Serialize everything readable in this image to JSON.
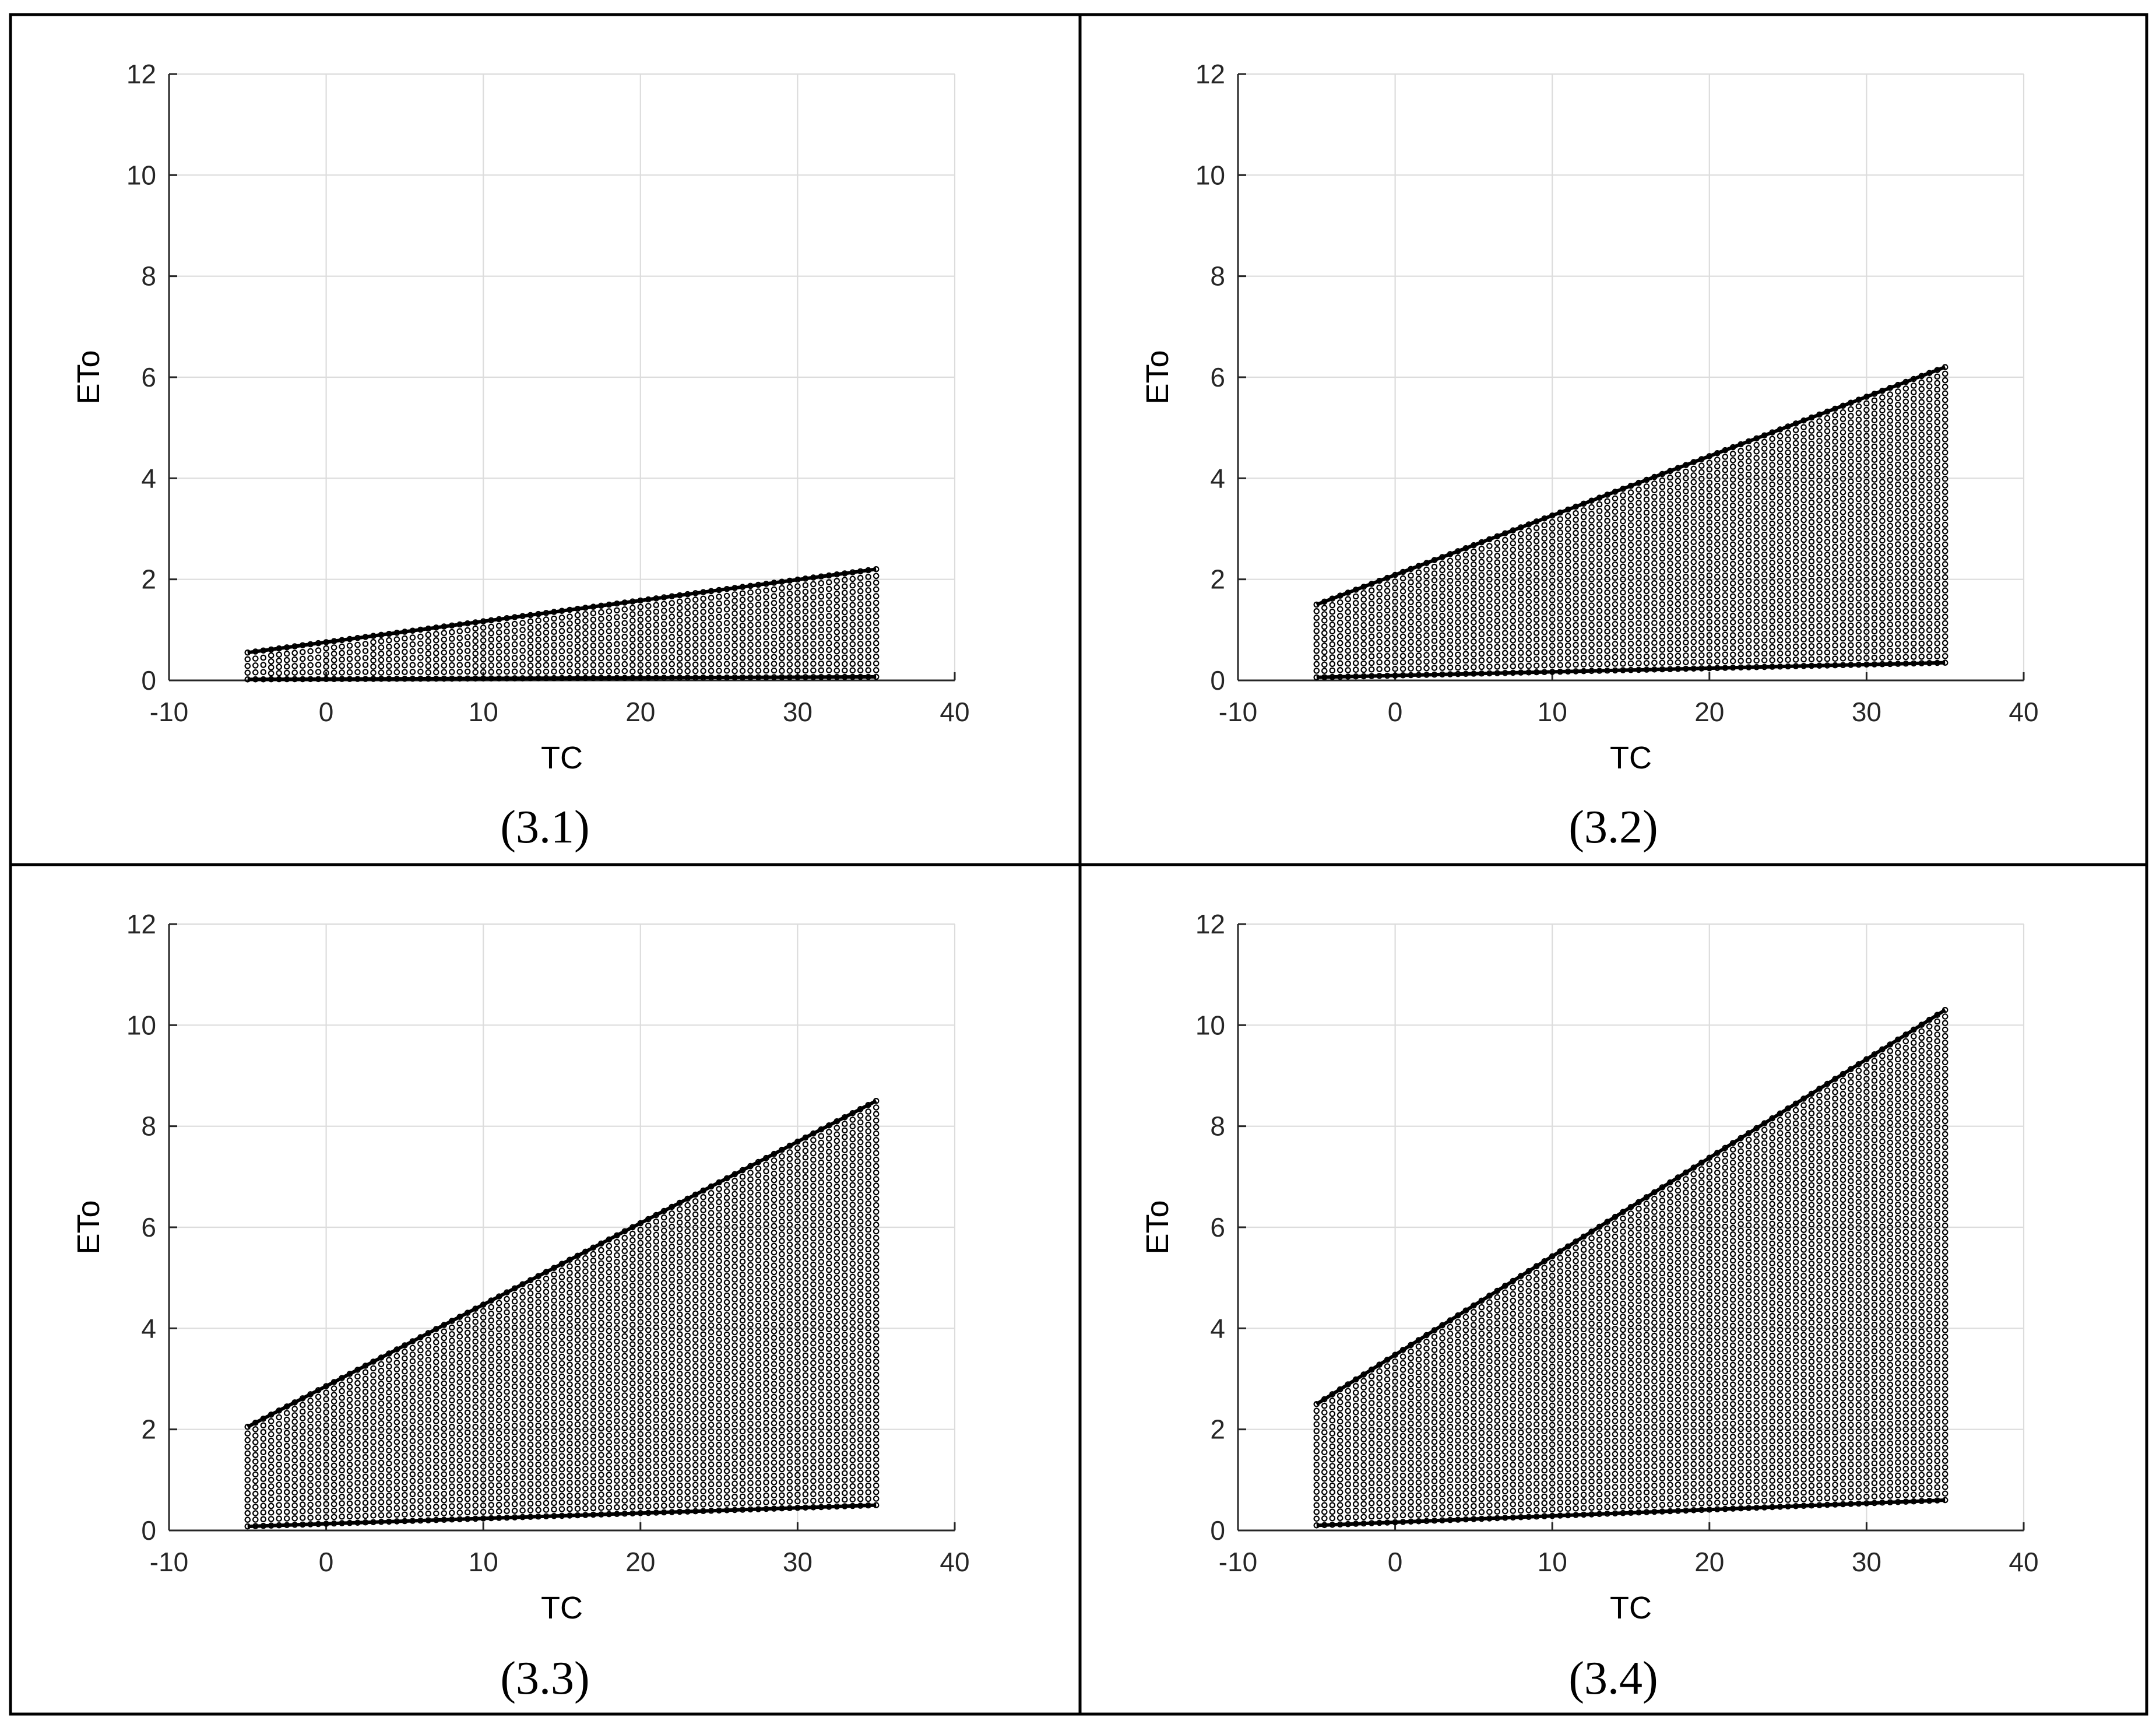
{
  "chart_data": [
    {
      "type": "scatter",
      "panel_label": "(3.1)",
      "xlabel": "TC",
      "ylabel": "ETo",
      "xlim": [
        -10,
        40
      ],
      "ylim": [
        0,
        12
      ],
      "xticks": [
        "-10",
        "0",
        "10",
        "20",
        "30",
        "40"
      ],
      "yticks": [
        "0",
        "2",
        "4",
        "6",
        "8",
        "10",
        "12"
      ],
      "grid": true,
      "x_range": [
        -5,
        35
      ],
      "upper_bound": {
        "x": [
          -5,
          35
        ],
        "y": [
          0.55,
          2.2
        ]
      },
      "lower_bound": {
        "x": [
          -5,
          35
        ],
        "y": [
          0.02,
          0.07
        ]
      }
    },
    {
      "type": "scatter",
      "panel_label": "(3.2)",
      "xlabel": "TC",
      "ylabel": "ETo",
      "xlim": [
        -10,
        40
      ],
      "ylim": [
        0,
        12
      ],
      "xticks": [
        "-10",
        "0",
        "10",
        "20",
        "30",
        "40"
      ],
      "yticks": [
        "0",
        "2",
        "4",
        "6",
        "8",
        "10",
        "12"
      ],
      "grid": true,
      "x_range": [
        -5,
        35
      ],
      "upper_bound": {
        "x": [
          -5,
          35
        ],
        "y": [
          1.5,
          6.2
        ]
      },
      "lower_bound": {
        "x": [
          -5,
          35
        ],
        "y": [
          0.06,
          0.35
        ]
      }
    },
    {
      "type": "scatter",
      "panel_label": "(3.3)",
      "xlabel": "TC",
      "ylabel": "ETo",
      "xlim": [
        -10,
        40
      ],
      "ylim": [
        0,
        12
      ],
      "xticks": [
        "-10",
        "0",
        "10",
        "20",
        "30",
        "40"
      ],
      "yticks": [
        "0",
        "2",
        "4",
        "6",
        "8",
        "10",
        "12"
      ],
      "grid": true,
      "x_range": [
        -5,
        35
      ],
      "upper_bound": {
        "x": [
          -5,
          35
        ],
        "y": [
          2.05,
          8.5
        ]
      },
      "lower_bound": {
        "x": [
          -5,
          35
        ],
        "y": [
          0.08,
          0.5
        ]
      }
    },
    {
      "type": "scatter",
      "panel_label": "(3.4)",
      "xlabel": "TC",
      "ylabel": "ETo",
      "xlim": [
        -10,
        40
      ],
      "ylim": [
        0,
        12
      ],
      "xticks": [
        "-10",
        "0",
        "10",
        "20",
        "30",
        "40"
      ],
      "yticks": [
        "0",
        "2",
        "4",
        "6",
        "8",
        "10",
        "12"
      ],
      "grid": true,
      "x_range": [
        -5,
        35
      ],
      "upper_bound": {
        "x": [
          -5,
          35
        ],
        "y": [
          2.5,
          10.3
        ]
      },
      "lower_bound": {
        "x": [
          -5,
          35
        ],
        "y": [
          0.1,
          0.6
        ]
      }
    }
  ]
}
